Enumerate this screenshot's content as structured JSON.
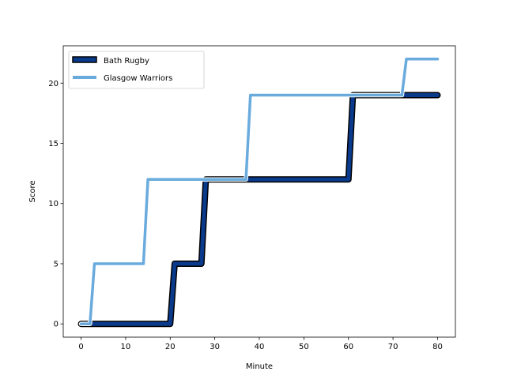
{
  "chart_data": {
    "type": "line",
    "title": "",
    "xlabel": "Minute",
    "ylabel": "Score",
    "xlim": [
      -4,
      84
    ],
    "ylim": [
      -1.1,
      23.1
    ],
    "xticks": [
      0,
      10,
      20,
      30,
      40,
      50,
      60,
      70,
      80
    ],
    "yticks": [
      0,
      5,
      10,
      15,
      20
    ],
    "grid": false,
    "legend_position": "upper-left",
    "series": [
      {
        "name": "Bath Rugby",
        "color": "#0a3a8c",
        "edge_color": "#000000",
        "x": [
          0,
          20,
          21,
          27,
          28,
          60,
          61,
          80
        ],
        "y": [
          0,
          0,
          5,
          5,
          12,
          12,
          19,
          19
        ]
      },
      {
        "name": "Glasgow Warriors",
        "color": "#6aabdd",
        "x": [
          0,
          2,
          3,
          14,
          15,
          37,
          38,
          72,
          73,
          80
        ],
        "y": [
          0,
          0,
          5,
          5,
          12,
          12,
          19,
          19,
          22,
          22
        ]
      }
    ]
  }
}
